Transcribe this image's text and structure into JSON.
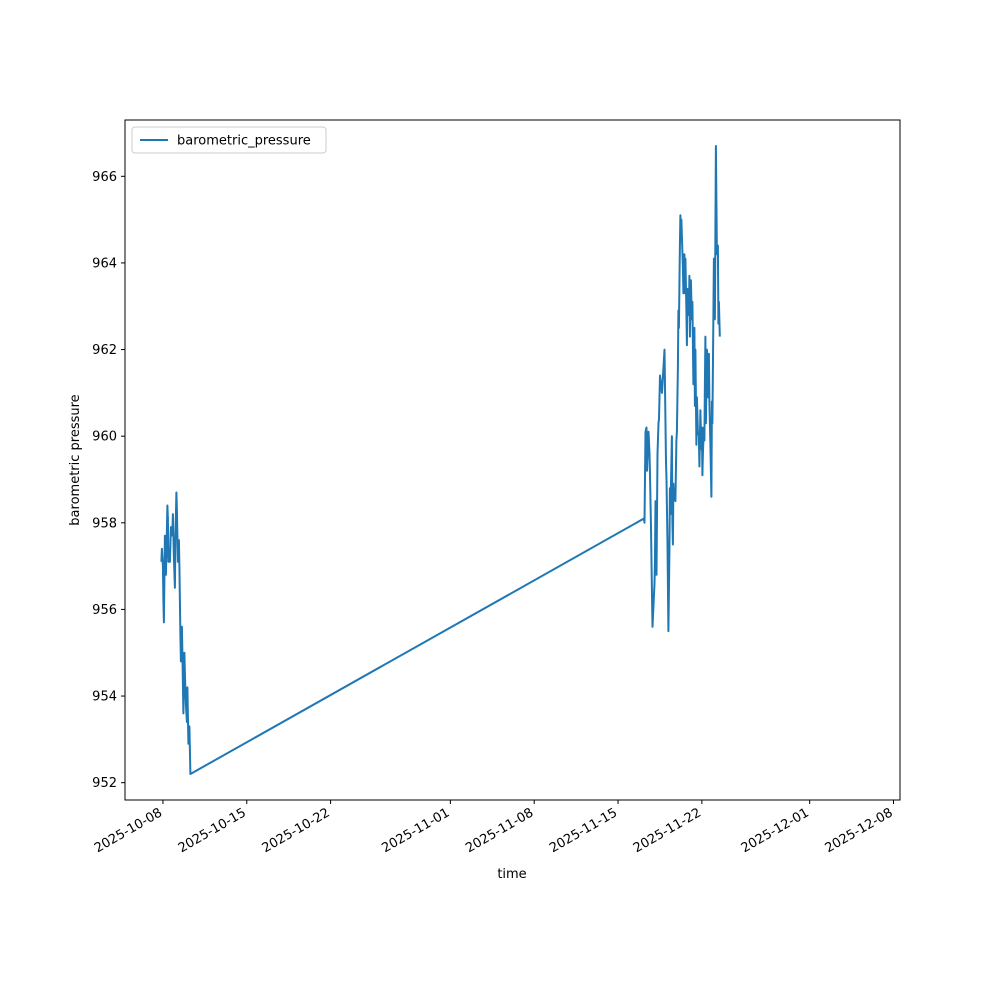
{
  "chart_data": {
    "type": "line",
    "title": "",
    "xlabel": "time",
    "ylabel": "barometric pressure",
    "x_ticks": [
      "2025-10-08",
      "2025-10-15",
      "2025-10-22",
      "2025-11-01",
      "2025-11-08",
      "2025-11-15",
      "2025-11-22",
      "2025-12-01",
      "2025-12-08"
    ],
    "y_ticks": [
      952,
      954,
      956,
      958,
      960,
      962,
      964,
      966
    ],
    "xlim": [
      "2025-10-04T20:00",
      "2025-12-08T13:00"
    ],
    "ylim": [
      951.6,
      967.3
    ],
    "grid": false,
    "legend_position": "upper left",
    "colors": {
      "series": "#1f77b4",
      "axes": "#000000",
      "background": "#ffffff"
    },
    "series": [
      {
        "name": "barometric_pressure",
        "points": [
          [
            "2025-10-07T21:00",
            957.1
          ],
          [
            "2025-10-07T22:00",
            957.4
          ],
          [
            "2025-10-08T00:00",
            957.0
          ],
          [
            "2025-10-08T01:00",
            956.2
          ],
          [
            "2025-10-08T02:00",
            955.7
          ],
          [
            "2025-10-08T04:00",
            957.7
          ],
          [
            "2025-10-08T05:00",
            957.5
          ],
          [
            "2025-10-08T06:00",
            956.8
          ],
          [
            "2025-10-08T07:00",
            957.3
          ],
          [
            "2025-10-08T09:00",
            958.4
          ],
          [
            "2025-10-08T10:00",
            958.1
          ],
          [
            "2025-10-08T11:00",
            957.1
          ],
          [
            "2025-10-08T14:00",
            957.1
          ],
          [
            "2025-10-08T16:00",
            957.9
          ],
          [
            "2025-10-08T17:00",
            957.7
          ],
          [
            "2025-10-08T19:00",
            957.8
          ],
          [
            "2025-10-08T20:00",
            958.2
          ],
          [
            "2025-10-08T22:00",
            957.2
          ],
          [
            "2025-10-09T00:00",
            956.5
          ],
          [
            "2025-10-09T01:00",
            957.6
          ],
          [
            "2025-10-09T03:00",
            958.7
          ],
          [
            "2025-10-09T04:00",
            958.3
          ],
          [
            "2025-10-09T06:00",
            957.1
          ],
          [
            "2025-10-09T08:00",
            957.6
          ],
          [
            "2025-10-09T09:00",
            957.0
          ],
          [
            "2025-10-09T11:00",
            955.4
          ],
          [
            "2025-10-09T12:00",
            954.8
          ],
          [
            "2025-10-09T14:00",
            955.6
          ],
          [
            "2025-10-09T15:00",
            955.0
          ],
          [
            "2025-10-09T17:00",
            953.6
          ],
          [
            "2025-10-09T19:00",
            955.0
          ],
          [
            "2025-10-09T20:00",
            954.5
          ],
          [
            "2025-10-09T22:00",
            953.8
          ],
          [
            "2025-10-10T00:00",
            953.4
          ],
          [
            "2025-10-10T01:00",
            954.2
          ],
          [
            "2025-10-10T03:00",
            952.9
          ],
          [
            "2025-10-10T04:00",
            953.0
          ],
          [
            "2025-10-10T05:00",
            953.3
          ],
          [
            "2025-10-10T07:00",
            952.2
          ],
          [
            "2025-11-17T04:00",
            958.1
          ],
          [
            "2025-11-17T05:00",
            958.0
          ],
          [
            "2025-11-17T07:00",
            960.1
          ],
          [
            "2025-11-17T09:00",
            960.2
          ],
          [
            "2025-11-17T10:00",
            959.2
          ],
          [
            "2025-11-17T12:00",
            959.8
          ],
          [
            "2025-11-17T13:00",
            960.1
          ],
          [
            "2025-11-17T15:00",
            959.6
          ],
          [
            "2025-11-17T16:00",
            959.1
          ],
          [
            "2025-11-17T18:00",
            957.9
          ],
          [
            "2025-11-17T20:00",
            956.3
          ],
          [
            "2025-11-17T21:00",
            955.6
          ],
          [
            "2025-11-18T01:00",
            956.6
          ],
          [
            "2025-11-18T02:00",
            957.2
          ],
          [
            "2025-11-18T03:00",
            958.5
          ],
          [
            "2025-11-18T05:00",
            956.8
          ],
          [
            "2025-11-18T07:00",
            959.6
          ],
          [
            "2025-11-18T09:00",
            960.3
          ],
          [
            "2025-11-18T10:00",
            960.4
          ],
          [
            "2025-11-18T12:00",
            961.4
          ],
          [
            "2025-11-18T16:00",
            961.0
          ],
          [
            "2025-11-18T19:00",
            961.6
          ],
          [
            "2025-11-18T21:00",
            962.0
          ],
          [
            "2025-11-19T00:00",
            959.4
          ],
          [
            "2025-11-19T01:00",
            959.0
          ],
          [
            "2025-11-19T03:00",
            957.5
          ],
          [
            "2025-11-19T05:00",
            955.5
          ],
          [
            "2025-11-19T07:00",
            957.3
          ],
          [
            "2025-11-19T08:00",
            958.8
          ],
          [
            "2025-11-19T09:00",
            958.2
          ],
          [
            "2025-11-19T10:00",
            958.8
          ],
          [
            "2025-11-19T12:00",
            960.0
          ],
          [
            "2025-11-19T13:00",
            958.0
          ],
          [
            "2025-11-19T14:00",
            957.5
          ],
          [
            "2025-11-19T15:00",
            958.9
          ],
          [
            "2025-11-19T16:00",
            958.6
          ],
          [
            "2025-11-19T19:00",
            958.5
          ],
          [
            "2025-11-19T21:00",
            959.9
          ],
          [
            "2025-11-19T22:00",
            960.1
          ],
          [
            "2025-11-20T00:00",
            961.6
          ],
          [
            "2025-11-20T01:00",
            962.9
          ],
          [
            "2025-11-20T02:00",
            962.5
          ],
          [
            "2025-11-20T04:00",
            964.4
          ],
          [
            "2025-11-20T05:00",
            965.1
          ],
          [
            "2025-11-20T06:00",
            964.7
          ],
          [
            "2025-11-20T07:00",
            965.0
          ],
          [
            "2025-11-20T08:00",
            964.6
          ],
          [
            "2025-11-20T10:00",
            963.9
          ],
          [
            "2025-11-20T11:00",
            963.3
          ],
          [
            "2025-11-20T13:00",
            964.2
          ],
          [
            "2025-11-20T14:00",
            963.3
          ],
          [
            "2025-11-20T15:00",
            964.1
          ],
          [
            "2025-11-20T17:00",
            962.9
          ],
          [
            "2025-11-20T18:00",
            962.1
          ],
          [
            "2025-11-20T19:00",
            963.4
          ],
          [
            "2025-11-20T21:00",
            963.3
          ],
          [
            "2025-11-20T22:00",
            962.8
          ],
          [
            "2025-11-20T23:00",
            963.7
          ],
          [
            "2025-11-21T00:00",
            962.3
          ],
          [
            "2025-11-21T02:00",
            963.6
          ],
          [
            "2025-11-21T03:00",
            963.1
          ],
          [
            "2025-11-21T04:00",
            962.7
          ],
          [
            "2025-11-21T05:00",
            963.1
          ],
          [
            "2025-11-21T07:00",
            961.2
          ],
          [
            "2025-11-21T08:00",
            961.8
          ],
          [
            "2025-11-21T09:00",
            962.5
          ],
          [
            "2025-11-21T10:00",
            960.7
          ],
          [
            "2025-11-21T11:00",
            962.0
          ],
          [
            "2025-11-21T13:00",
            959.8
          ],
          [
            "2025-11-21T14:00",
            960.9
          ],
          [
            "2025-11-21T16:00",
            960.1
          ],
          [
            "2025-11-21T18:00",
            960.0
          ],
          [
            "2025-11-21T19:00",
            959.3
          ],
          [
            "2025-11-21T21:00",
            960.6
          ],
          [
            "2025-11-21T22:00",
            960.1
          ],
          [
            "2025-11-21T23:00",
            959.7
          ],
          [
            "2025-11-22T00:00",
            960.2
          ],
          [
            "2025-11-22T01:00",
            959.1
          ],
          [
            "2025-11-22T02:00",
            959.6
          ],
          [
            "2025-11-22T04:00",
            960.2
          ],
          [
            "2025-11-22T05:00",
            959.9
          ],
          [
            "2025-11-22T06:00",
            961.2
          ],
          [
            "2025-11-22T07:00",
            962.3
          ],
          [
            "2025-11-22T08:00",
            960.3
          ],
          [
            "2025-11-22T10:00",
            962.0
          ],
          [
            "2025-11-22T11:00",
            961.8
          ],
          [
            "2025-11-22T12:00",
            960.9
          ],
          [
            "2025-11-22T14:00",
            961.9
          ],
          [
            "2025-11-22T15:00",
            960.8
          ],
          [
            "2025-11-22T17:00",
            959.8
          ],
          [
            "2025-11-22T19:00",
            958.6
          ],
          [
            "2025-11-22T20:00",
            960.8
          ],
          [
            "2025-11-22T21:00",
            960.3
          ],
          [
            "2025-11-22T23:00",
            962.8
          ],
          [
            "2025-11-23T00:00",
            964.1
          ],
          [
            "2025-11-23T02:00",
            962.7
          ],
          [
            "2025-11-23T04:00",
            966.7
          ],
          [
            "2025-11-23T06:00",
            964.2
          ],
          [
            "2025-11-23T08:00",
            964.4
          ],
          [
            "2025-11-23T09:00",
            962.6
          ],
          [
            "2025-11-23T10:00",
            963.1
          ],
          [
            "2025-11-23T12:00",
            962.3
          ]
        ]
      }
    ]
  }
}
